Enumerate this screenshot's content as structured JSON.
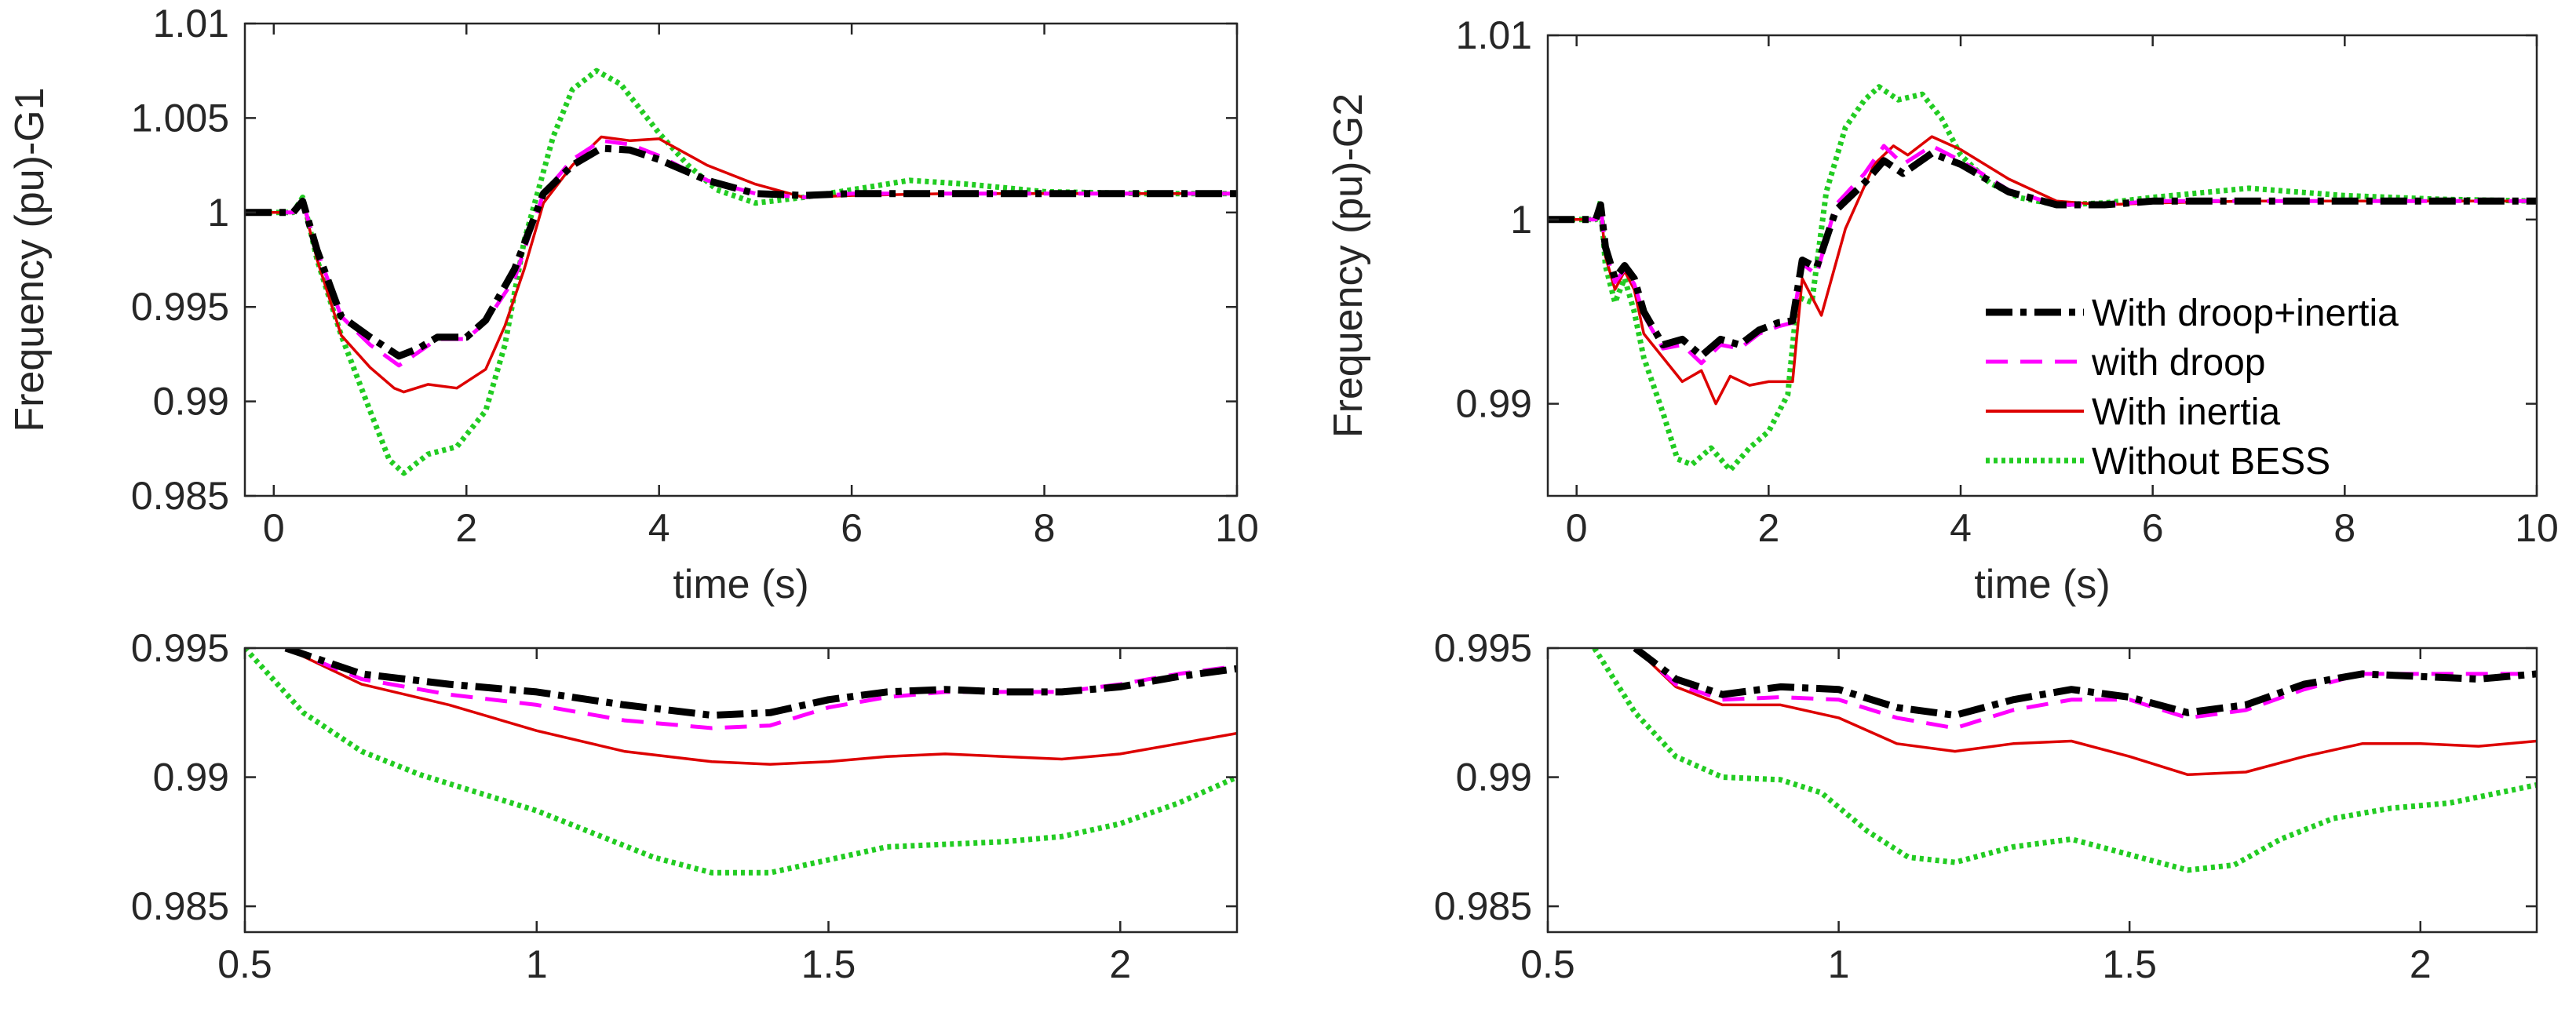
{
  "colors": {
    "droop_inertia": "#000000",
    "droop": "#ff00ff",
    "inertia": "#dd0000",
    "without": "#22cc22",
    "axis": "#262626",
    "background": "#ffffff"
  },
  "chart_data": [
    {
      "id": "g1-main",
      "type": "line",
      "title": "",
      "xlabel": "time (s)",
      "ylabel": "Frequency (pu)-G1",
      "xlim": [
        -0.3,
        10
      ],
      "ylim": [
        0.985,
        1.01
      ],
      "xticks": [
        0,
        2,
        4,
        6,
        8,
        10
      ],
      "xtick_labels": [
        "0",
        "2",
        "4",
        "6",
        "8",
        "10"
      ],
      "yticks": [
        0.985,
        0.99,
        0.995,
        1,
        1.005,
        1.01
      ],
      "ytick_labels": [
        "0.985",
        "0.99",
        "0.995",
        "1",
        "1.005",
        "1.01"
      ],
      "grid": false,
      "series": [
        {
          "name": "With droop+inertia",
          "key": "droop_inertia",
          "x": [
            -0.3,
            0.2,
            0.3,
            0.45,
            0.7,
            1.0,
            1.3,
            1.5,
            1.7,
            2.0,
            2.2,
            2.5,
            2.8,
            3.1,
            3.4,
            3.7,
            4.0,
            4.5,
            5.0,
            5.5,
            6.0,
            7.0,
            8.0,
            9.0,
            10.0
          ],
          "y": [
            1.0,
            1.0,
            1.0006,
            0.998,
            0.9945,
            0.9934,
            0.9924,
            0.9928,
            0.9934,
            0.9934,
            0.9943,
            0.997,
            1.001,
            1.0025,
            1.0034,
            1.0033,
            1.0028,
            1.0017,
            1.001,
            1.0009,
            1.001,
            1.001,
            1.001,
            1.001,
            1.001
          ]
        },
        {
          "name": "with droop",
          "key": "droop",
          "x": [
            -0.3,
            0.2,
            0.3,
            0.45,
            0.7,
            1.0,
            1.3,
            1.5,
            1.7,
            2.0,
            2.2,
            2.5,
            2.8,
            3.1,
            3.4,
            3.7,
            4.0,
            4.5,
            5.0,
            5.5,
            6.0,
            7.0,
            8.0,
            9.0,
            10.0
          ],
          "y": [
            1.0,
            1.0,
            1.0006,
            0.998,
            0.9945,
            0.993,
            0.9919,
            0.9926,
            0.9933,
            0.9933,
            0.9942,
            0.9965,
            1.001,
            1.0028,
            1.0038,
            1.0036,
            1.003,
            1.0017,
            1.001,
            1.0008,
            1.001,
            1.001,
            1.001,
            1.001,
            1.001
          ]
        },
        {
          "name": "With inertia",
          "key": "inertia",
          "x": [
            -0.3,
            0.2,
            0.3,
            0.45,
            0.7,
            1.0,
            1.25,
            1.35,
            1.6,
            1.9,
            2.2,
            2.4,
            2.6,
            2.8,
            3.1,
            3.4,
            3.7,
            4.0,
            4.5,
            5.0,
            5.5,
            6.0,
            7.0,
            8.0,
            9.0,
            10.0
          ],
          "y": [
            1.0,
            1.0,
            1.0006,
            0.9975,
            0.9935,
            0.9918,
            0.9907,
            0.9905,
            0.9909,
            0.9907,
            0.9917,
            0.994,
            0.997,
            1.0005,
            1.0025,
            1.004,
            1.0038,
            1.0039,
            1.0025,
            1.0015,
            1.0008,
            1.0009,
            1.001,
            1.001,
            1.001,
            1.001
          ]
        },
        {
          "name": "Without BESS",
          "key": "without",
          "x": [
            -0.3,
            0.2,
            0.3,
            0.45,
            0.7,
            1.0,
            1.2,
            1.35,
            1.6,
            1.9,
            2.2,
            2.4,
            2.6,
            2.9,
            3.1,
            3.35,
            3.6,
            4.0,
            4.3,
            4.6,
            5.0,
            5.5,
            6.0,
            6.6,
            7.2,
            8.0,
            9.0,
            10.0
          ],
          "y": [
            1.0,
            1.0,
            1.0008,
            0.9975,
            0.9935,
            0.9895,
            0.9869,
            0.9862,
            0.9872,
            0.9876,
            0.9895,
            0.993,
            0.9985,
            1.004,
            1.0065,
            1.0075,
            1.0068,
            1.0042,
            1.0025,
            1.0012,
            1.0005,
            1.0008,
            1.0012,
            1.0017,
            1.0015,
            1.0011,
            1.001,
            1.001
          ]
        }
      ]
    },
    {
      "id": "g2-main",
      "type": "line",
      "title": "",
      "xlabel": "time (s)",
      "ylabel": "Frequency (pu)-G2",
      "xlim": [
        -0.3,
        10
      ],
      "ylim": [
        0.985,
        1.01
      ],
      "xticks": [
        0,
        2,
        4,
        6,
        8,
        10
      ],
      "xtick_labels": [
        "0",
        "2",
        "4",
        "6",
        "8",
        "10"
      ],
      "yticks": [
        0.99,
        1,
        1.01
      ],
      "ytick_labels": [
        "0.99",
        "1",
        "1.01"
      ],
      "grid": false,
      "legend_position": "center-right",
      "series": [
        {
          "name": "With droop+inertia",
          "key": "droop_inertia",
          "x": [
            -0.3,
            0.2,
            0.25,
            0.3,
            0.4,
            0.5,
            0.6,
            0.7,
            0.9,
            1.1,
            1.3,
            1.5,
            1.7,
            1.9,
            2.1,
            2.25,
            2.35,
            2.5,
            2.7,
            3.0,
            3.2,
            3.4,
            3.7,
            4.0,
            4.5,
            5.0,
            5.5,
            6.0,
            7.0,
            8.0,
            9.0,
            10.0
          ],
          "y": [
            1.0,
            1.0,
            1.0008,
            0.9985,
            0.9968,
            0.9975,
            0.9968,
            0.995,
            0.9932,
            0.9935,
            0.9926,
            0.9935,
            0.9932,
            0.994,
            0.9944,
            0.9945,
            0.9978,
            0.9974,
            1.0005,
            1.002,
            1.0032,
            1.0025,
            1.0036,
            1.003,
            1.0015,
            1.0008,
            1.0008,
            1.001,
            1.001,
            1.001,
            1.001,
            1.001
          ]
        },
        {
          "name": "with droop",
          "key": "droop",
          "x": [
            -0.3,
            0.2,
            0.25,
            0.3,
            0.4,
            0.5,
            0.6,
            0.7,
            0.9,
            1.1,
            1.3,
            1.5,
            1.7,
            1.9,
            2.1,
            2.25,
            2.35,
            2.5,
            2.7,
            3.0,
            3.2,
            3.4,
            3.7,
            4.0,
            4.5,
            5.0,
            5.5,
            6.0,
            7.0,
            8.0,
            9.0,
            10.0
          ],
          "y": [
            1.0,
            1.0,
            1.0008,
            0.9983,
            0.9966,
            0.9973,
            0.9965,
            0.9948,
            0.993,
            0.9932,
            0.9922,
            0.9932,
            0.993,
            0.9938,
            0.9942,
            0.9944,
            0.9976,
            0.997,
            1.0008,
            1.0025,
            1.004,
            1.003,
            1.004,
            1.0032,
            1.0016,
            1.0008,
            1.0008,
            1.001,
            1.001,
            1.001,
            1.001,
            1.001
          ]
        },
        {
          "name": "With inertia",
          "key": "inertia",
          "x": [
            -0.3,
            0.2,
            0.25,
            0.3,
            0.4,
            0.5,
            0.6,
            0.7,
            0.9,
            1.1,
            1.3,
            1.45,
            1.6,
            1.8,
            2.0,
            2.25,
            2.35,
            2.55,
            2.8,
            3.1,
            3.3,
            3.45,
            3.7,
            4.0,
            4.5,
            5.0,
            5.5,
            6.0,
            7.0,
            8.0,
            9.0,
            10.0
          ],
          "y": [
            1.0,
            1.0,
            1.0007,
            0.998,
            0.9962,
            0.9972,
            0.9962,
            0.9938,
            0.9925,
            0.9912,
            0.9918,
            0.99,
            0.9915,
            0.991,
            0.9912,
            0.9912,
            0.9968,
            0.9948,
            0.9995,
            1.003,
            1.004,
            1.0035,
            1.0045,
            1.0038,
            1.0022,
            1.001,
            1.0008,
            1.0009,
            1.001,
            1.001,
            1.001,
            1.001
          ]
        },
        {
          "name": "Without BESS",
          "key": "without",
          "x": [
            -0.3,
            0.2,
            0.25,
            0.3,
            0.4,
            0.5,
            0.6,
            0.7,
            0.9,
            1.05,
            1.2,
            1.4,
            1.6,
            1.8,
            2.0,
            2.2,
            2.3,
            2.45,
            2.6,
            2.8,
            3.0,
            3.15,
            3.35,
            3.6,
            3.8,
            4.0,
            4.3,
            4.6,
            5.0,
            5.5,
            6.0,
            7.0,
            8.0,
            9.0,
            10.0
          ],
          "y": [
            1.0,
            1.0,
            1.001,
            0.9975,
            0.9955,
            0.9968,
            0.995,
            0.9925,
            0.9895,
            0.987,
            0.9867,
            0.9876,
            0.9864,
            0.9876,
            0.9885,
            0.9905,
            0.9958,
            0.9955,
            1.0015,
            1.005,
            1.0065,
            1.0072,
            1.0065,
            1.0068,
            1.0055,
            1.0035,
            1.002,
            1.0012,
            1.0008,
            1.0009,
            1.0012,
            1.0017,
            1.0013,
            1.0011,
            1.001
          ]
        }
      ]
    },
    {
      "id": "g1-zoom",
      "type": "line",
      "title": "",
      "xlabel": "",
      "ylabel": "",
      "xlim": [
        0.5,
        2.2
      ],
      "ylim": [
        0.984,
        0.995
      ],
      "xticks": [
        0.5,
        1,
        1.5,
        2
      ],
      "xtick_labels": [
        "0.5",
        "1",
        "1.5",
        "2"
      ],
      "yticks": [
        0.985,
        0.99,
        0.995
      ],
      "ytick_labels": [
        "0.985",
        "0.99",
        "0.995"
      ],
      "grid": false,
      "series": [
        {
          "name": "With droop+inertia",
          "key": "droop_inertia",
          "x": [
            0.57,
            0.7,
            0.85,
            1.0,
            1.15,
            1.3,
            1.4,
            1.5,
            1.6,
            1.7,
            1.8,
            1.9,
            2.0,
            2.1,
            2.2
          ],
          "y": [
            0.995,
            0.994,
            0.9936,
            0.9933,
            0.9928,
            0.9924,
            0.9925,
            0.993,
            0.9933,
            0.9934,
            0.9933,
            0.9933,
            0.9935,
            0.9939,
            0.9942
          ]
        },
        {
          "name": "with droop",
          "key": "droop",
          "x": [
            0.57,
            0.7,
            0.85,
            1.0,
            1.15,
            1.3,
            1.4,
            1.5,
            1.6,
            1.7,
            1.8,
            1.9,
            2.0,
            2.1,
            2.2
          ],
          "y": [
            0.995,
            0.9938,
            0.9932,
            0.9928,
            0.9922,
            0.9919,
            0.992,
            0.9927,
            0.9931,
            0.9933,
            0.9933,
            0.9933,
            0.9936,
            0.994,
            0.9943
          ]
        },
        {
          "name": "With inertia",
          "key": "inertia",
          "x": [
            0.57,
            0.7,
            0.85,
            1.0,
            1.15,
            1.3,
            1.4,
            1.5,
            1.6,
            1.7,
            1.8,
            1.9,
            2.0,
            2.1,
            2.2
          ],
          "y": [
            0.995,
            0.9936,
            0.9928,
            0.9918,
            0.991,
            0.9906,
            0.9905,
            0.9906,
            0.9908,
            0.9909,
            0.9908,
            0.9907,
            0.9909,
            0.9913,
            0.9917
          ]
        },
        {
          "name": "Without BESS",
          "key": "without",
          "x": [
            0.5,
            0.6,
            0.7,
            0.8,
            0.9,
            1.0,
            1.1,
            1.2,
            1.3,
            1.4,
            1.5,
            1.6,
            1.7,
            1.8,
            1.9,
            2.0,
            2.1,
            2.2
          ],
          "y": [
            0.995,
            0.9925,
            0.991,
            0.9901,
            0.9894,
            0.9887,
            0.9878,
            0.9869,
            0.9863,
            0.9863,
            0.9868,
            0.9873,
            0.9874,
            0.9875,
            0.9877,
            0.9882,
            0.989,
            0.99
          ]
        }
      ]
    },
    {
      "id": "g2-zoom",
      "type": "line",
      "title": "",
      "xlabel": "",
      "ylabel": "",
      "xlim": [
        0.5,
        2.2
      ],
      "ylim": [
        0.984,
        0.995
      ],
      "xticks": [
        0.5,
        1,
        1.5,
        2
      ],
      "xtick_labels": [
        "0.5",
        "1",
        "1.5",
        "2"
      ],
      "yticks": [
        0.985,
        0.99,
        0.995
      ],
      "ytick_labels": [
        "0.985",
        "0.99",
        "0.995"
      ],
      "grid": false,
      "series": [
        {
          "name": "With droop+inertia",
          "key": "droop_inertia",
          "x": [
            0.65,
            0.72,
            0.8,
            0.9,
            1.0,
            1.1,
            1.2,
            1.3,
            1.4,
            1.5,
            1.6,
            1.7,
            1.8,
            1.9,
            2.0,
            2.1,
            2.2
          ],
          "y": [
            0.995,
            0.9938,
            0.9932,
            0.9935,
            0.9934,
            0.9927,
            0.9924,
            0.993,
            0.9934,
            0.9931,
            0.9925,
            0.9928,
            0.9936,
            0.994,
            0.9939,
            0.9938,
            0.994
          ]
        },
        {
          "name": "with droop",
          "key": "droop",
          "x": [
            0.65,
            0.72,
            0.8,
            0.9,
            1.0,
            1.1,
            1.2,
            1.3,
            1.4,
            1.5,
            1.6,
            1.7,
            1.8,
            1.9,
            2.0,
            2.1,
            2.2
          ],
          "y": [
            0.995,
            0.9936,
            0.993,
            0.9931,
            0.993,
            0.9923,
            0.9919,
            0.9926,
            0.993,
            0.993,
            0.9923,
            0.9926,
            0.9934,
            0.994,
            0.994,
            0.994,
            0.994
          ]
        },
        {
          "name": "With inertia",
          "key": "inertia",
          "x": [
            0.65,
            0.72,
            0.8,
            0.9,
            1.0,
            1.1,
            1.2,
            1.3,
            1.4,
            1.5,
            1.6,
            1.7,
            1.8,
            1.9,
            2.0,
            2.1,
            2.2
          ],
          "y": [
            0.995,
            0.9935,
            0.9928,
            0.9928,
            0.9923,
            0.9913,
            0.991,
            0.9913,
            0.9914,
            0.9908,
            0.9901,
            0.9902,
            0.9908,
            0.9913,
            0.9913,
            0.9912,
            0.9914
          ]
        },
        {
          "name": "Without BESS",
          "key": "without",
          "x": [
            0.58,
            0.65,
            0.72,
            0.8,
            0.9,
            0.97,
            1.05,
            1.12,
            1.2,
            1.3,
            1.4,
            1.5,
            1.6,
            1.68,
            1.76,
            1.85,
            1.95,
            2.05,
            2.2
          ],
          "y": [
            0.995,
            0.9925,
            0.9908,
            0.99,
            0.9899,
            0.9894,
            0.9879,
            0.9869,
            0.9867,
            0.9873,
            0.9876,
            0.987,
            0.9864,
            0.9866,
            0.9876,
            0.9884,
            0.9888,
            0.989,
            0.9897
          ]
        }
      ]
    }
  ],
  "legend": [
    {
      "key": "droop_inertia",
      "label": "With droop+inertia"
    },
    {
      "key": "droop",
      "label": "with droop"
    },
    {
      "key": "inertia",
      "label": "With inertia"
    },
    {
      "key": "without",
      "label": "Without BESS"
    }
  ]
}
